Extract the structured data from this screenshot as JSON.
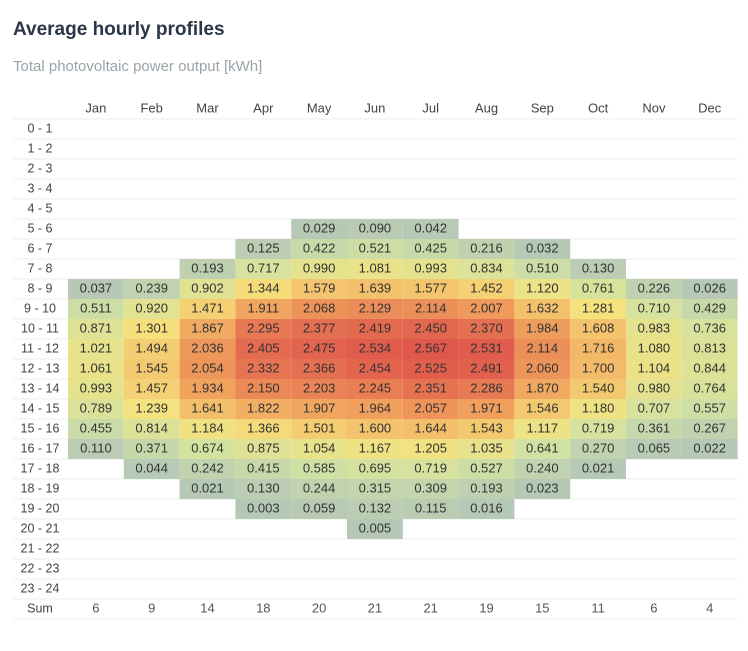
{
  "chart_data": {
    "type": "heatmap",
    "title": "Average hourly profiles",
    "subtitle": "Total photovoltaic power output [kWh]",
    "x": [
      "Jan",
      "Feb",
      "Mar",
      "Apr",
      "May",
      "Jun",
      "Jul",
      "Aug",
      "Sep",
      "Oct",
      "Nov",
      "Dec"
    ],
    "y": [
      "0 - 1",
      "1 - 2",
      "2 - 3",
      "3 - 4",
      "4 - 5",
      "5 - 6",
      "6 - 7",
      "7 - 8",
      "8 - 9",
      "9 - 10",
      "10 - 11",
      "11 - 12",
      "12 - 13",
      "13 - 14",
      "14 - 15",
      "15 - 16",
      "16 - 17",
      "17 - 18",
      "18 - 19",
      "19 - 20",
      "20 - 21",
      "21 - 22",
      "22 - 23",
      "23 - 24"
    ],
    "values": [
      [
        null,
        null,
        null,
        null,
        null,
        null,
        null,
        null,
        null,
        null,
        null,
        null
      ],
      [
        null,
        null,
        null,
        null,
        null,
        null,
        null,
        null,
        null,
        null,
        null,
        null
      ],
      [
        null,
        null,
        null,
        null,
        null,
        null,
        null,
        null,
        null,
        null,
        null,
        null
      ],
      [
        null,
        null,
        null,
        null,
        null,
        null,
        null,
        null,
        null,
        null,
        null,
        null
      ],
      [
        null,
        null,
        null,
        null,
        null,
        null,
        null,
        null,
        null,
        null,
        null,
        null
      ],
      [
        null,
        null,
        null,
        null,
        0.029,
        0.09,
        0.042,
        null,
        null,
        null,
        null,
        null
      ],
      [
        null,
        null,
        null,
        0.125,
        0.422,
        0.521,
        0.425,
        0.216,
        0.032,
        null,
        null,
        null
      ],
      [
        null,
        null,
        0.193,
        0.717,
        0.99,
        1.081,
        0.993,
        0.834,
        0.51,
        0.13,
        null,
        null
      ],
      [
        0.037,
        0.239,
        0.902,
        1.344,
        1.579,
        1.639,
        1.577,
        1.452,
        1.12,
        0.761,
        0.226,
        0.026
      ],
      [
        0.511,
        0.92,
        1.471,
        1.911,
        2.068,
        2.129,
        2.114,
        2.007,
        1.632,
        1.281,
        0.71,
        0.429
      ],
      [
        0.871,
        1.301,
        1.867,
        2.295,
        2.377,
        2.419,
        2.45,
        2.37,
        1.984,
        1.608,
        0.983,
        0.736
      ],
      [
        1.021,
        1.494,
        2.036,
        2.405,
        2.475,
        2.534,
        2.567,
        2.531,
        2.114,
        1.716,
        1.08,
        0.813
      ],
      [
        1.061,
        1.545,
        2.054,
        2.332,
        2.366,
        2.454,
        2.525,
        2.491,
        2.06,
        1.7,
        1.104,
        0.844
      ],
      [
        0.993,
        1.457,
        1.934,
        2.15,
        2.203,
        2.245,
        2.351,
        2.286,
        1.87,
        1.54,
        0.98,
        0.764
      ],
      [
        0.789,
        1.239,
        1.641,
        1.822,
        1.907,
        1.964,
        2.057,
        1.971,
        1.546,
        1.18,
        0.707,
        0.557
      ],
      [
        0.455,
        0.814,
        1.184,
        1.366,
        1.501,
        1.6,
        1.644,
        1.543,
        1.117,
        0.719,
        0.361,
        0.267
      ],
      [
        0.11,
        0.371,
        0.674,
        0.875,
        1.054,
        1.167,
        1.205,
        1.035,
        0.641,
        0.27,
        0.065,
        0.022
      ],
      [
        null,
        0.044,
        0.242,
        0.415,
        0.585,
        0.695,
        0.719,
        0.527,
        0.24,
        0.021,
        null,
        null
      ],
      [
        null,
        null,
        0.021,
        0.13,
        0.244,
        0.315,
        0.309,
        0.193,
        0.023,
        null,
        null,
        null
      ],
      [
        null,
        null,
        null,
        0.003,
        0.059,
        0.132,
        0.115,
        0.016,
        null,
        null,
        null,
        null
      ],
      [
        null,
        null,
        null,
        null,
        null,
        0.005,
        null,
        null,
        null,
        null,
        null,
        null
      ],
      [
        null,
        null,
        null,
        null,
        null,
        null,
        null,
        null,
        null,
        null,
        null,
        null
      ],
      [
        null,
        null,
        null,
        null,
        null,
        null,
        null,
        null,
        null,
        null,
        null,
        null
      ],
      [
        null,
        null,
        null,
        null,
        null,
        null,
        null,
        null,
        null,
        null,
        null,
        null
      ]
    ],
    "value_labels": [
      [
        null,
        null,
        null,
        null,
        null,
        null,
        null,
        null,
        null,
        null,
        null,
        null
      ],
      [
        null,
        null,
        null,
        null,
        null,
        null,
        null,
        null,
        null,
        null,
        null,
        null
      ],
      [
        null,
        null,
        null,
        null,
        null,
        null,
        null,
        null,
        null,
        null,
        null,
        null
      ],
      [
        null,
        null,
        null,
        null,
        null,
        null,
        null,
        null,
        null,
        null,
        null,
        null
      ],
      [
        null,
        null,
        null,
        null,
        null,
        null,
        null,
        null,
        null,
        null,
        null,
        null
      ],
      [
        null,
        null,
        null,
        null,
        "0.029",
        "0.090",
        "0.042",
        null,
        null,
        null,
        null,
        null
      ],
      [
        null,
        null,
        null,
        "0.125",
        "0.422",
        "0.521",
        "0.425",
        "0.216",
        "0.032",
        null,
        null,
        null
      ],
      [
        null,
        null,
        "0.193",
        "0.717",
        "0.990",
        "1.081",
        "0.993",
        "0.834",
        "0.510",
        "0.130",
        null,
        null
      ],
      [
        "0.037",
        "0.239",
        "0.902",
        "1.344",
        "1.579",
        "1.639",
        "1.577",
        "1.452",
        "1.120",
        "0.761",
        "0.226",
        "0.026"
      ],
      [
        "0.511",
        "0.920",
        "1.471",
        "1.911",
        "2.068",
        "2.129",
        "2.114",
        "2.007",
        "1.632",
        "1.281",
        "0.710",
        "0.429"
      ],
      [
        "0.871",
        "1.301",
        "1.867",
        "2.295",
        "2.377",
        "2.419",
        "2.450",
        "2.370",
        "1.984",
        "1.608",
        "0.983",
        "0.736"
      ],
      [
        "1.021",
        "1.494",
        "2.036",
        "2.405",
        "2.475",
        "2.534",
        "2.567",
        "2.531",
        "2.114",
        "1.716",
        "1.080",
        "0.813"
      ],
      [
        "1.061",
        "1.545",
        "2.054",
        "2.332",
        "2.366",
        "2.454",
        "2.525",
        "2.491",
        "2.060",
        "1.700",
        "1.104",
        "0.844"
      ],
      [
        "0.993",
        "1.457",
        "1.934",
        "2.150",
        "2.203",
        "2.245",
        "2.351",
        "2.286",
        "1.870",
        "1.540",
        "0.980",
        "0.764"
      ],
      [
        "0.789",
        "1.239",
        "1.641",
        "1.822",
        "1.907",
        "1.964",
        "2.057",
        "1.971",
        "1.546",
        "1.180",
        "0.707",
        "0.557"
      ],
      [
        "0.455",
        "0.814",
        "1.184",
        "1.366",
        "1.501",
        "1.600",
        "1.644",
        "1.543",
        "1.117",
        "0.719",
        "0.361",
        "0.267"
      ],
      [
        "0.110",
        "0.371",
        "0.674",
        "0.875",
        "1.054",
        "1.167",
        "1.205",
        "1.035",
        "0.641",
        "0.270",
        "0.065",
        "0.022"
      ],
      [
        null,
        "0.044",
        "0.242",
        "0.415",
        "0.585",
        "0.695",
        "0.719",
        "0.527",
        "0.240",
        "0.021",
        null,
        null
      ],
      [
        null,
        null,
        "0.021",
        "0.130",
        "0.244",
        "0.315",
        "0.309",
        "0.193",
        "0.023",
        null,
        null,
        null
      ],
      [
        null,
        null,
        null,
        "0.003",
        "0.059",
        "0.132",
        "0.115",
        "0.016",
        null,
        null,
        null,
        null
      ],
      [
        null,
        null,
        null,
        null,
        null,
        "0.005",
        null,
        null,
        null,
        null,
        null,
        null
      ],
      [
        null,
        null,
        null,
        null,
        null,
        null,
        null,
        null,
        null,
        null,
        null,
        null
      ],
      [
        null,
        null,
        null,
        null,
        null,
        null,
        null,
        null,
        null,
        null,
        null,
        null
      ],
      [
        null,
        null,
        null,
        null,
        null,
        null,
        null,
        null,
        null,
        null,
        null,
        null
      ]
    ],
    "sum": {
      "label": "Sum",
      "values": [
        6,
        9,
        14,
        18,
        20,
        21,
        21,
        19,
        15,
        11,
        6,
        4
      ]
    },
    "colors": [
      "#b5c8b6",
      "#d2e2a2",
      "#f5e27c",
      "#f1a45e",
      "#e0584b"
    ]
  }
}
